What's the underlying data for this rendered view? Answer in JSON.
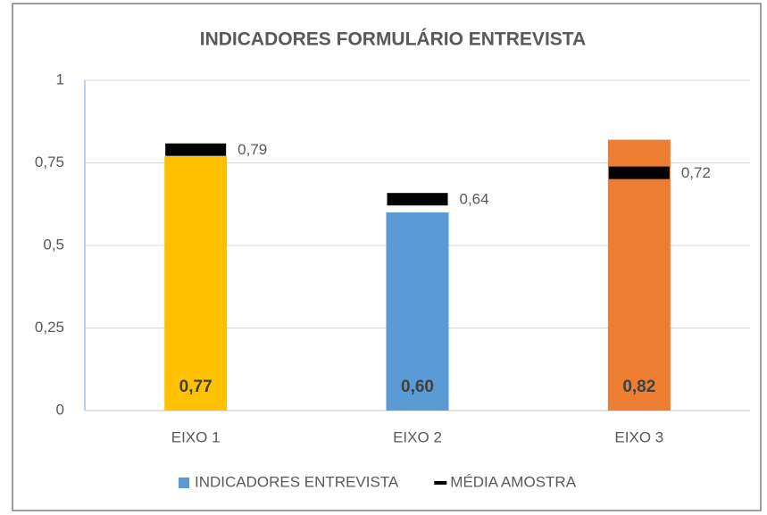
{
  "chart_data": {
    "type": "bar",
    "title": "INDICADORES FORMULÁRIO ENTREVISTA",
    "categories": [
      "EIXO 1",
      "EIXO 2",
      "EIXO 3"
    ],
    "series": [
      {
        "name": "INDICADORES ENTREVISTA",
        "color": "#5b9bd5",
        "colors": [
          "#ffc000",
          "#5b9bd5",
          "#ed7d31"
        ],
        "values": [
          0.77,
          0.6,
          0.82
        ],
        "value_labels": [
          "0,77",
          "0,60",
          "0,82"
        ]
      },
      {
        "name": "MÉDIA AMOSTRA",
        "type": "marker",
        "color": "#000000",
        "values": [
          0.79,
          0.64,
          0.72
        ],
        "value_labels": [
          "0,79",
          "0,64",
          "0,72"
        ]
      }
    ],
    "ylim": [
      0,
      1
    ],
    "yticks": [
      0,
      {
        "value": 0.25,
        "label": "0,25"
      },
      {
        "value": 0.5,
        "label": "0,5"
      },
      {
        "value": 0.75,
        "label": "0,75"
      },
      1
    ],
    "grid": true,
    "legend": "bottom"
  }
}
